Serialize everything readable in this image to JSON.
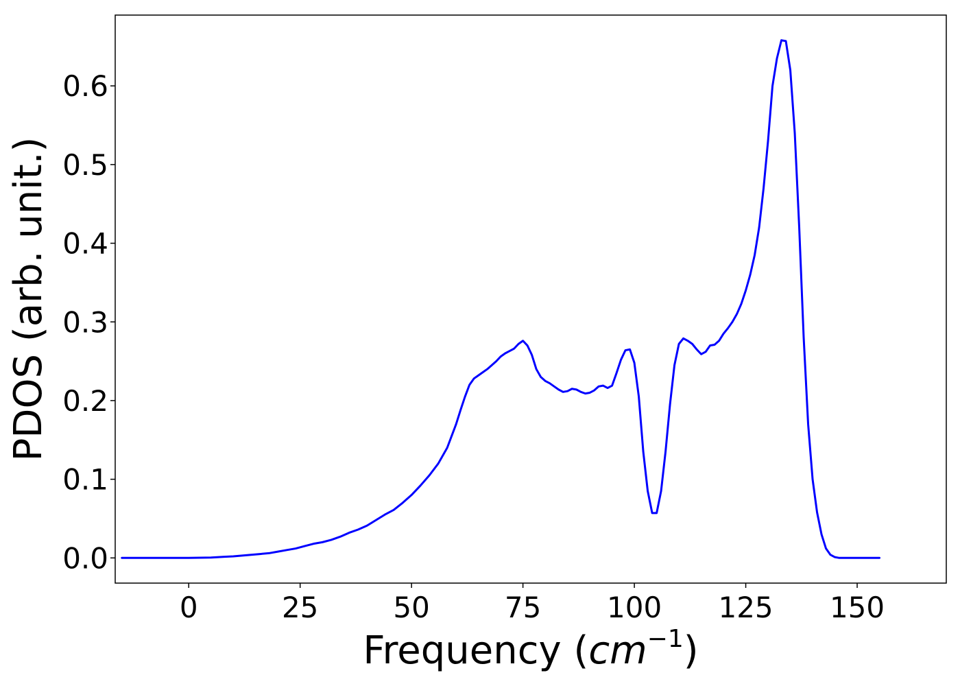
{
  "chart_data": {
    "type": "line",
    "title": "",
    "xlabel": {
      "text": "Frequency (",
      "unit_base": "cm",
      "unit_exponent": "−1",
      "close": ")"
    },
    "ylabel": "PDOS (arb. unit.)",
    "xlim": [
      -16.5,
      170
    ],
    "ylim": [
      -0.032,
      0.69
    ],
    "xticks": [
      0,
      25,
      50,
      75,
      100,
      125,
      150
    ],
    "xtick_labels": [
      "0",
      "25",
      "50",
      "75",
      "100",
      "125",
      "150"
    ],
    "yticks": [
      0.0,
      0.1,
      0.2,
      0.3,
      0.4,
      0.5,
      0.6
    ],
    "ytick_labels": [
      "0.0",
      "0.1",
      "0.2",
      "0.3",
      "0.4",
      "0.5",
      "0.6"
    ],
    "grid": false,
    "colors": {
      "line": "#0000ff",
      "axes": "#000000",
      "background": "#ffffff"
    },
    "series": [
      {
        "x": [
          -15,
          -10,
          -5,
          0,
          5,
          8,
          10,
          12,
          14,
          16,
          18,
          20,
          22,
          24,
          26,
          28,
          30,
          32,
          34,
          36,
          38,
          40,
          42,
          44,
          46,
          48,
          50,
          52,
          54,
          56,
          58,
          60,
          61,
          62,
          63,
          64,
          65,
          66,
          67,
          68,
          69,
          70,
          71,
          72,
          73,
          74,
          75,
          76,
          77,
          78,
          79,
          80,
          81,
          82,
          83,
          84,
          85,
          86,
          87,
          88,
          89,
          90,
          91,
          92,
          93,
          94,
          95,
          96,
          97,
          98,
          99,
          100,
          101,
          102,
          103,
          104,
          105,
          106,
          107,
          108,
          109,
          110,
          111,
          112,
          113,
          114,
          115,
          116,
          117,
          118,
          119,
          120,
          121,
          122,
          123,
          124,
          125,
          126,
          127,
          128,
          129,
          130,
          131,
          132,
          133,
          134,
          135,
          136,
          137,
          138,
          139,
          140,
          141,
          142,
          143,
          144,
          145,
          146,
          148,
          150,
          155
        ],
        "y": [
          0.0,
          0.0,
          0.0,
          0.0,
          0.0005,
          0.0015,
          0.002,
          0.003,
          0.004,
          0.005,
          0.006,
          0.008,
          0.01,
          0.012,
          0.015,
          0.018,
          0.02,
          0.023,
          0.027,
          0.032,
          0.036,
          0.041,
          0.048,
          0.055,
          0.061,
          0.07,
          0.08,
          0.092,
          0.105,
          0.12,
          0.14,
          0.17,
          0.188,
          0.205,
          0.22,
          0.228,
          0.232,
          0.236,
          0.24,
          0.245,
          0.25,
          0.256,
          0.26,
          0.263,
          0.266,
          0.272,
          0.276,
          0.27,
          0.258,
          0.24,
          0.23,
          0.225,
          0.222,
          0.218,
          0.214,
          0.211,
          0.212,
          0.215,
          0.214,
          0.211,
          0.209,
          0.21,
          0.213,
          0.218,
          0.219,
          0.216,
          0.219,
          0.235,
          0.252,
          0.264,
          0.265,
          0.248,
          0.205,
          0.135,
          0.085,
          0.057,
          0.057,
          0.085,
          0.135,
          0.195,
          0.245,
          0.272,
          0.279,
          0.276,
          0.272,
          0.265,
          0.259,
          0.262,
          0.27,
          0.271,
          0.276,
          0.285,
          0.292,
          0.3,
          0.31,
          0.323,
          0.34,
          0.36,
          0.385,
          0.42,
          0.47,
          0.53,
          0.6,
          0.635,
          0.658,
          0.657,
          0.62,
          0.54,
          0.42,
          0.28,
          0.17,
          0.1,
          0.058,
          0.03,
          0.012,
          0.004,
          0.001,
          0.0,
          0.0,
          0.0,
          0.0
        ]
      }
    ]
  }
}
